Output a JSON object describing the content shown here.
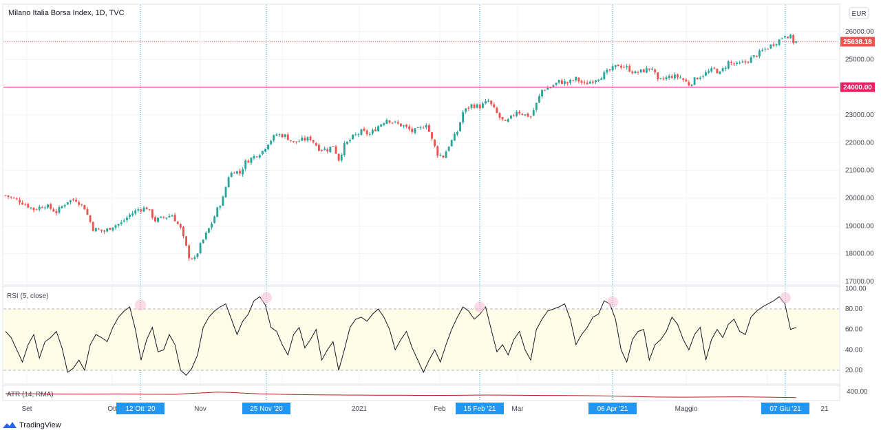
{
  "header": {
    "title": "Milano Italia Borsa Index, 1D, TVC",
    "currency": "EUR"
  },
  "price_scale": {
    "ticks": [
      17000,
      18000,
      19000,
      20000,
      21000,
      22000,
      23000,
      24000,
      25000,
      26000
    ],
    "tick_labels": [
      "17000.00",
      "18000.00",
      "19000.00",
      "20000.00",
      "21000.00",
      "22000.00",
      "23000.00",
      "24000.00",
      "25000.00",
      "26000.00"
    ],
    "last_price_label": "25638.18",
    "level_label": "24000.00"
  },
  "rsi_scale": {
    "tick_labels": [
      "20.00",
      "40.00",
      "60.00",
      "80.00",
      "100.00"
    ]
  },
  "atr_scale": {
    "tick_labels": [
      "400.00"
    ]
  },
  "time_axis": {
    "labels": [
      "Set",
      "Ott",
      "Nov",
      "2021",
      "Feb",
      "Mar",
      "Maggio",
      "21"
    ],
    "highlights": [
      "12 Ott '20",
      "25 Nov '20",
      "15 Feb '21",
      "06 Apr '21",
      "07 Giu '21"
    ]
  },
  "indicators": {
    "rsi_label": "RSI (5, close)",
    "atr_label": "ATR (14, RMA)"
  },
  "footer": {
    "brand": "TradingView"
  },
  "colors": {
    "up": "#26a69a",
    "down": "#ef5350",
    "level": "#e91e63",
    "last": "#ef5350",
    "highlight": "#2196f3",
    "rsi": "#131722",
    "atr": "#b71c1c",
    "band": "#fffde7"
  },
  "chart_data": [
    {
      "type": "candlestick",
      "title": "Milano Italia Borsa Index, 1D, TVC",
      "ylim": [
        16800,
        26400
      ],
      "y_ticks": [
        17000,
        18000,
        19000,
        20000,
        21000,
        22000,
        23000,
        24000,
        25000,
        26000
      ],
      "horizontal_line": 24000,
      "last_price": 25638.18,
      "close_path": [
        [
          0,
          20100
        ],
        [
          5,
          19900
        ],
        [
          10,
          19600
        ],
        [
          14,
          19750
        ],
        [
          18,
          19500
        ],
        [
          22,
          19900
        ],
        [
          25,
          19950
        ],
        [
          28,
          19650
        ],
        [
          31,
          18900
        ],
        [
          35,
          18800
        ],
        [
          38,
          19000
        ],
        [
          41,
          19100
        ],
        [
          44,
          19400
        ],
        [
          47,
          19600
        ],
        [
          50,
          19650
        ],
        [
          53,
          19200
        ],
        [
          56,
          19300
        ],
        [
          59,
          19400
        ],
        [
          62,
          18900
        ],
        [
          65,
          17900
        ],
        [
          67,
          17800
        ],
        [
          69,
          18300
        ],
        [
          71,
          18700
        ],
        [
          73,
          19100
        ],
        [
          75,
          19600
        ],
        [
          77,
          20000
        ],
        [
          79,
          20800
        ],
        [
          81,
          21000
        ],
        [
          83,
          20900
        ],
        [
          85,
          21300
        ],
        [
          88,
          21500
        ],
        [
          91,
          21700
        ],
        [
          93,
          22000
        ],
        [
          96,
          22300
        ],
        [
          99,
          22250
        ],
        [
          102,
          22000
        ],
        [
          105,
          22100
        ],
        [
          108,
          22150
        ],
        [
          111,
          21800
        ],
        [
          114,
          21750
        ],
        [
          116,
          21900
        ],
        [
          118,
          21400
        ],
        [
          120,
          21900
        ],
        [
          123,
          22200
        ],
        [
          126,
          22400
        ],
        [
          129,
          22300
        ],
        [
          132,
          22600
        ],
        [
          135,
          22850
        ],
        [
          138,
          22700
        ],
        [
          141,
          22600
        ],
        [
          144,
          22400
        ],
        [
          147,
          22500
        ],
        [
          149,
          22700
        ],
        [
          151,
          22100
        ],
        [
          153,
          21600
        ],
        [
          155,
          21500
        ],
        [
          157,
          21900
        ],
        [
          160,
          22400
        ],
        [
          162,
          23100
        ],
        [
          165,
          23350
        ],
        [
          168,
          23300
        ],
        [
          171,
          23500
        ],
        [
          173,
          23200
        ],
        [
          175,
          22900
        ],
        [
          177,
          22700
        ],
        [
          179,
          22900
        ],
        [
          181,
          23150
        ],
        [
          184,
          23000
        ],
        [
          186,
          22950
        ],
        [
          188,
          23400
        ],
        [
          190,
          23900
        ],
        [
          193,
          24000
        ],
        [
          196,
          24200
        ],
        [
          199,
          24150
        ],
        [
          202,
          24300
        ],
        [
          205,
          24100
        ],
        [
          208,
          24250
        ],
        [
          211,
          24400
        ],
        [
          214,
          24600
        ],
        [
          217,
          24800
        ],
        [
          220,
          24700
        ],
        [
          223,
          24500
        ],
        [
          226,
          24600
        ],
        [
          229,
          24700
        ],
        [
          231,
          24200
        ],
        [
          233,
          24300
        ],
        [
          236,
          24400
        ],
        [
          239,
          24350
        ],
        [
          242,
          24100
        ],
        [
          245,
          24350
        ],
        [
          248,
          24500
        ],
        [
          251,
          24650
        ],
        [
          253,
          24500
        ],
        [
          256,
          24900
        ],
        [
          259,
          24800
        ],
        [
          262,
          24900
        ],
        [
          265,
          25100
        ],
        [
          268,
          25300
        ],
        [
          271,
          25500
        ],
        [
          274,
          25700
        ],
        [
          276,
          25900
        ],
        [
          278,
          25800
        ],
        [
          279,
          25638
        ]
      ],
      "x_range": [
        0,
        282
      ]
    },
    {
      "type": "line",
      "title": "RSI (5, close)",
      "ylim": [
        0,
        100
      ],
      "bands": [
        20,
        80
      ],
      "y_ticks": [
        20,
        40,
        60,
        80,
        100
      ],
      "x_range": [
        0,
        282
      ],
      "x": [
        0,
        2,
        4,
        6,
        8,
        10,
        12,
        14,
        16,
        18,
        20,
        22,
        24,
        26,
        28,
        30,
        32,
        34,
        36,
        38,
        40,
        42,
        44,
        46,
        48,
        50,
        52,
        54,
        56,
        58,
        60,
        62,
        64,
        66,
        68,
        70,
        72,
        74,
        76,
        78,
        80,
        82,
        84,
        86,
        88,
        90,
        92,
        94,
        96,
        98,
        100,
        102,
        104,
        106,
        108,
        110,
        112,
        114,
        116,
        118,
        120,
        122,
        124,
        126,
        128,
        130,
        132,
        134,
        136,
        138,
        140,
        142,
        144,
        146,
        148,
        150,
        152,
        154,
        156,
        158,
        160,
        162,
        164,
        166,
        168,
        170,
        172,
        174,
        176,
        178,
        180,
        182,
        184,
        186,
        188,
        190,
        192,
        194,
        196,
        198,
        200,
        202,
        204,
        206,
        208,
        210,
        212,
        214,
        216,
        218,
        220,
        222,
        224,
        226,
        228,
        230,
        232,
        234,
        236,
        238,
        240,
        242,
        244,
        246,
        248,
        250,
        252,
        254,
        256,
        258,
        260,
        262,
        264,
        266,
        268,
        270,
        272,
        274,
        276,
        278,
        280
      ],
      "values": [
        58,
        52,
        40,
        28,
        45,
        55,
        32,
        48,
        52,
        58,
        42,
        18,
        22,
        30,
        20,
        45,
        55,
        52,
        48,
        62,
        72,
        78,
        82,
        60,
        30,
        50,
        62,
        38,
        40,
        55,
        45,
        20,
        15,
        22,
        35,
        62,
        72,
        78,
        82,
        85,
        70,
        55,
        68,
        75,
        88,
        92,
        84,
        62,
        58,
        45,
        35,
        55,
        62,
        42,
        50,
        60,
        30,
        40,
        48,
        20,
        40,
        62,
        70,
        72,
        68,
        75,
        80,
        72,
        60,
        40,
        50,
        58,
        42,
        30,
        18,
        30,
        40,
        28,
        45,
        60,
        72,
        82,
        78,
        70,
        75,
        82,
        60,
        38,
        45,
        35,
        50,
        58,
        40,
        30,
        60,
        70,
        78,
        80,
        82,
        85,
        70,
        45,
        55,
        62,
        72,
        75,
        88,
        85,
        70,
        40,
        28,
        50,
        58,
        60,
        30,
        45,
        50,
        58,
        72,
        65,
        50,
        40,
        55,
        62,
        30,
        50,
        60,
        52,
        65,
        70,
        58,
        55,
        72,
        78,
        82,
        85,
        88,
        92,
        85,
        60,
        62
      ]
    },
    {
      "type": "line",
      "title": "ATR (14, RMA)",
      "ylim": [
        250,
        460
      ],
      "y_ticks": [
        400
      ],
      "x_range": [
        0,
        282
      ],
      "x": [
        0,
        10,
        20,
        30,
        40,
        50,
        60,
        65,
        70,
        75,
        80,
        85,
        90,
        100,
        110,
        120,
        130,
        140,
        150,
        160,
        170,
        180,
        190,
        200,
        210,
        220,
        230,
        240,
        250,
        260,
        270,
        280
      ],
      "values": [
        390,
        385,
        380,
        378,
        382,
        375,
        372,
        395,
        410,
        430,
        420,
        400,
        385,
        370,
        360,
        355,
        350,
        352,
        345,
        348,
        355,
        350,
        345,
        342,
        335,
        320,
        305,
        300,
        305,
        310,
        300,
        290
      ]
    }
  ]
}
